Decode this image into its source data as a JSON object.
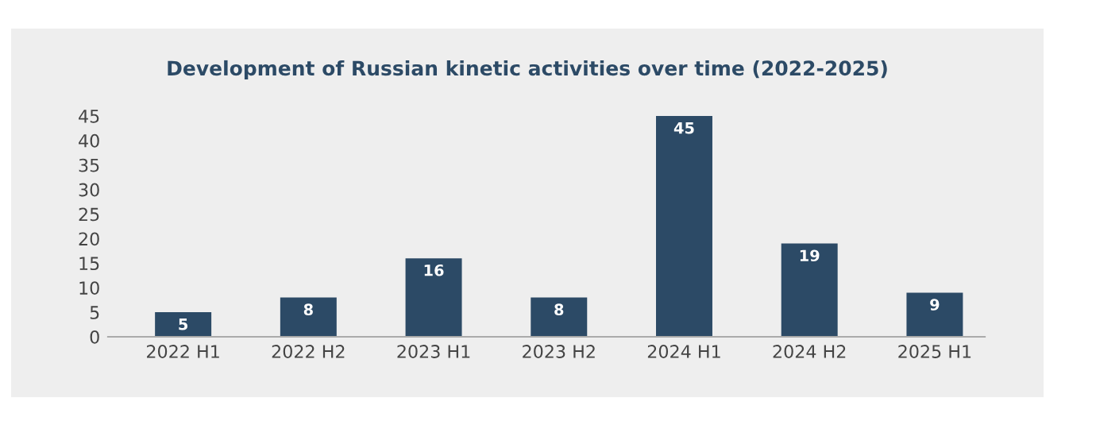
{
  "chart_data": {
    "type": "bar",
    "title": "Development of Russian kinetic activities over time (2022-2025)",
    "categories": [
      "2022 H1",
      "2022 H2",
      "2023 H1",
      "2023 H2",
      "2024 H1",
      "2024 H2",
      "2025 H1"
    ],
    "values": [
      5,
      8,
      16,
      8,
      45,
      19,
      9
    ],
    "color": "#2c4a66",
    "ylim": [
      0,
      45
    ],
    "yticks": [
      0,
      5,
      10,
      15,
      20,
      25,
      30,
      35,
      40,
      45
    ],
    "grid": false,
    "data_labels": true,
    "legend": false
  }
}
